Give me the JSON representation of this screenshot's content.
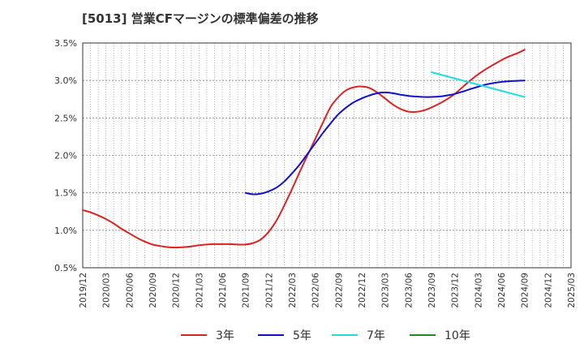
{
  "chart_data": {
    "type": "line",
    "title": "[5013]  営業CFマージンの標準偏差の推移",
    "xlabel": "",
    "ylabel": "",
    "categories": [
      "2019/12",
      "2020/03",
      "2020/06",
      "2020/09",
      "2020/12",
      "2021/03",
      "2021/06",
      "2021/09",
      "2021/12",
      "2022/03",
      "2022/06",
      "2022/09",
      "2022/12",
      "2023/03",
      "2023/06",
      "2023/09",
      "2023/12",
      "2024/03",
      "2024/06",
      "2024/09",
      "2024/12",
      "2025/03"
    ],
    "y_ticks": [
      "0.5%",
      "1.0%",
      "1.5%",
      "2.0%",
      "2.5%",
      "3.0%",
      "3.5%"
    ],
    "ylim": [
      0.5,
      3.5
    ],
    "y_unit": "%",
    "grid": true,
    "legend_position": "bottom",
    "series": [
      {
        "name": "3年",
        "color": "#dd2222",
        "points": [
          [
            "2019/12",
            1.27
          ],
          [
            "2020/01",
            1.24
          ],
          [
            "2020/02",
            1.2
          ],
          [
            "2020/03",
            1.15
          ],
          [
            "2020/04",
            1.09
          ],
          [
            "2020/05",
            1.02
          ],
          [
            "2020/06",
            0.96
          ],
          [
            "2020/07",
            0.9
          ],
          [
            "2020/08",
            0.85
          ],
          [
            "2020/09",
            0.81
          ],
          [
            "2020/10",
            0.79
          ],
          [
            "2020/11",
            0.775
          ],
          [
            "2020/12",
            0.77
          ],
          [
            "2021/01",
            0.775
          ],
          [
            "2021/02",
            0.785
          ],
          [
            "2021/03",
            0.8
          ],
          [
            "2021/04",
            0.81
          ],
          [
            "2021/05",
            0.815
          ],
          [
            "2021/06",
            0.815
          ],
          [
            "2021/07",
            0.815
          ],
          [
            "2021/08",
            0.81
          ],
          [
            "2021/09",
            0.81
          ],
          [
            "2021/10",
            0.83
          ],
          [
            "2021/11",
            0.88
          ],
          [
            "2021/12",
            0.98
          ],
          [
            "2022/01",
            1.13
          ],
          [
            "2022/02",
            1.33
          ],
          [
            "2022/03",
            1.55
          ],
          [
            "2022/04",
            1.78
          ],
          [
            "2022/05",
            2.0
          ],
          [
            "2022/06",
            2.22
          ],
          [
            "2022/07",
            2.44
          ],
          [
            "2022/08",
            2.65
          ],
          [
            "2022/09",
            2.78
          ],
          [
            "2022/10",
            2.87
          ],
          [
            "2022/11",
            2.91
          ],
          [
            "2022/12",
            2.92
          ],
          [
            "2023/01",
            2.9
          ],
          [
            "2023/02",
            2.84
          ],
          [
            "2023/03",
            2.76
          ],
          [
            "2023/04",
            2.68
          ],
          [
            "2023/05",
            2.62
          ],
          [
            "2023/06",
            2.585
          ],
          [
            "2023/07",
            2.58
          ],
          [
            "2023/08",
            2.6
          ],
          [
            "2023/09",
            2.64
          ],
          [
            "2023/10",
            2.69
          ],
          [
            "2023/11",
            2.75
          ],
          [
            "2023/12",
            2.82
          ],
          [
            "2024/01",
            2.91
          ],
          [
            "2024/02",
            3.0
          ],
          [
            "2024/03",
            3.08
          ],
          [
            "2024/04",
            3.15
          ],
          [
            "2024/05",
            3.21
          ],
          [
            "2024/06",
            3.27
          ],
          [
            "2024/07",
            3.32
          ],
          [
            "2024/08",
            3.36
          ],
          [
            "2024/09",
            3.41
          ]
        ]
      },
      {
        "name": "5年",
        "color": "#1111cc",
        "points": [
          [
            "2021/09",
            1.5
          ],
          [
            "2021/10",
            1.48
          ],
          [
            "2021/11",
            1.49
          ],
          [
            "2021/12",
            1.52
          ],
          [
            "2022/01",
            1.57
          ],
          [
            "2022/02",
            1.65
          ],
          [
            "2022/03",
            1.76
          ],
          [
            "2022/04",
            1.88
          ],
          [
            "2022/05",
            2.02
          ],
          [
            "2022/06",
            2.16
          ],
          [
            "2022/07",
            2.3
          ],
          [
            "2022/08",
            2.43
          ],
          [
            "2022/09",
            2.55
          ],
          [
            "2022/10",
            2.64
          ],
          [
            "2022/11",
            2.71
          ],
          [
            "2022/12",
            2.76
          ],
          [
            "2023/01",
            2.8
          ],
          [
            "2023/02",
            2.83
          ],
          [
            "2023/03",
            2.84
          ],
          [
            "2023/04",
            2.83
          ],
          [
            "2023/05",
            2.81
          ],
          [
            "2023/06",
            2.795
          ],
          [
            "2023/07",
            2.785
          ],
          [
            "2023/08",
            2.78
          ],
          [
            "2023/09",
            2.78
          ],
          [
            "2023/10",
            2.785
          ],
          [
            "2023/11",
            2.8
          ],
          [
            "2023/12",
            2.82
          ],
          [
            "2024/01",
            2.85
          ],
          [
            "2024/02",
            2.885
          ],
          [
            "2024/03",
            2.915
          ],
          [
            "2024/04",
            2.945
          ],
          [
            "2024/05",
            2.965
          ],
          [
            "2024/06",
            2.98
          ],
          [
            "2024/07",
            2.99
          ],
          [
            "2024/08",
            2.995
          ],
          [
            "2024/09",
            3.0
          ]
        ]
      },
      {
        "name": "7年",
        "color": "#22dddd",
        "points": [
          [
            "2023/09",
            3.11
          ],
          [
            "2024/09",
            2.78
          ]
        ]
      },
      {
        "name": "10年",
        "color": "#228822",
        "points": []
      }
    ]
  }
}
